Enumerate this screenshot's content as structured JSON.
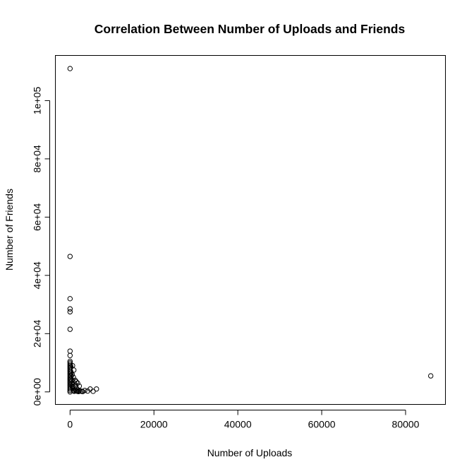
{
  "chart_data": {
    "type": "scatter",
    "title": "Correlation Between Number of Uploads and Friends",
    "xlabel": "Number of Uploads",
    "ylabel": "Number of Friends",
    "xlim": [
      -3500,
      89500
    ],
    "ylim": [
      -4300,
      115500
    ],
    "x_ticks": [
      0,
      20000,
      40000,
      60000,
      80000
    ],
    "x_tick_labels": [
      "0",
      "20000",
      "40000",
      "60000",
      "80000"
    ],
    "y_ticks": [
      0,
      20000,
      40000,
      60000,
      80000,
      100000
    ],
    "y_tick_labels": [
      "0e+00",
      "2e+04",
      "4e+04",
      "6e+04",
      "8e+04",
      "1e+05"
    ],
    "grid": false,
    "legend": "none",
    "marker": "open-circle",
    "colors": {
      "points": "#000000",
      "axes": "#000000",
      "background": "#ffffff"
    },
    "series": [
      {
        "points": [
          [
            0,
            111000
          ],
          [
            0,
            46500
          ],
          [
            0,
            32000
          ],
          [
            0,
            28500
          ],
          [
            0,
            27500
          ],
          [
            0,
            21500
          ],
          [
            0,
            14000
          ],
          [
            0,
            12500
          ],
          [
            0,
            10500
          ],
          [
            0,
            10000
          ],
          [
            0,
            9500
          ],
          [
            0,
            9000
          ],
          [
            0,
            8500
          ],
          [
            0,
            8000
          ],
          [
            0,
            7500
          ],
          [
            0,
            7000
          ],
          [
            0,
            6500
          ],
          [
            0,
            6000
          ],
          [
            0,
            5500
          ],
          [
            0,
            5000
          ],
          [
            0,
            4500
          ],
          [
            0,
            4000
          ],
          [
            0,
            3500
          ],
          [
            0,
            3000
          ],
          [
            0,
            2500
          ],
          [
            0,
            2000
          ],
          [
            0,
            1500
          ],
          [
            0,
            1000
          ],
          [
            0,
            500
          ],
          [
            0,
            0
          ],
          [
            100,
            9000
          ],
          [
            200,
            8500
          ],
          [
            150,
            7000
          ],
          [
            250,
            6500
          ],
          [
            300,
            5500
          ],
          [
            200,
            4500
          ],
          [
            400,
            4000
          ],
          [
            350,
            3000
          ],
          [
            500,
            2500
          ],
          [
            450,
            2000
          ],
          [
            600,
            1500
          ],
          [
            700,
            1000
          ],
          [
            800,
            500
          ],
          [
            900,
            300
          ],
          [
            1000,
            200
          ],
          [
            1200,
            900
          ],
          [
            1400,
            400
          ],
          [
            1600,
            300
          ],
          [
            1800,
            200
          ],
          [
            2000,
            100
          ],
          [
            2200,
            400
          ],
          [
            2500,
            300
          ],
          [
            2800,
            200
          ],
          [
            3000,
            100
          ],
          [
            600,
            9000
          ],
          [
            900,
            7500
          ],
          [
            1200,
            4000
          ],
          [
            1500,
            3500
          ],
          [
            1800,
            3000
          ],
          [
            2200,
            2000
          ],
          [
            500,
            6000
          ],
          [
            800,
            5000
          ],
          [
            1000,
            3000
          ],
          [
            1300,
            2000
          ],
          [
            1600,
            1200
          ],
          [
            3500,
            500
          ],
          [
            4200,
            300
          ],
          [
            4800,
            1000
          ],
          [
            5500,
            200
          ],
          [
            6300,
            1000
          ],
          [
            86000,
            5500
          ]
        ]
      }
    ]
  }
}
